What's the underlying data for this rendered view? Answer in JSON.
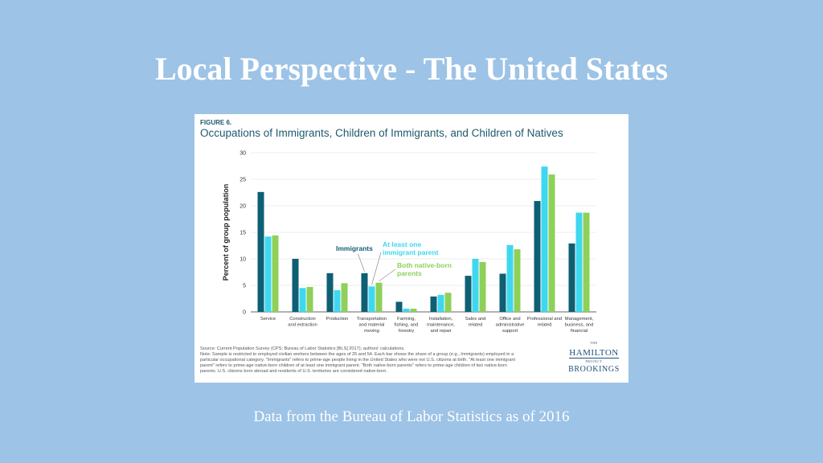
{
  "slide": {
    "title": "Local Perspective - The United States",
    "footer": "Data from the Bureau of Labor Statistics as of 2016"
  },
  "figure": {
    "label": "FIGURE 6.",
    "notes": [
      "Source: Current Population Survey (CPS; Bureau of Labor Statistics [BLS] 2017); authors' calculations.",
      "Note: Sample is restricted to employed civilian workers between the ages of 25 and 54. Each bar shows the share of a group (e.g., Immigrants) employed in a",
      "particular occupational category. \"Immigrants\" refers to prime-age people living in the United States who were not U.S. citizens at birth. \"At least one immigrant",
      "parent\" refers to prime-age native-born children of at least one immigrant parent. \"Both native-born parents\" refers to prime-age children of two native-born",
      "parents. U.S. citizens born abroad and residents of U.S. territories are considered native-born."
    ],
    "logo": {
      "the": "THE",
      "hamilton": "HAMILTON",
      "project": "PROJECT",
      "brookings": "BROOKINGS"
    }
  },
  "chart_data": {
    "type": "bar",
    "title": "Occupations of Immigrants, Children of Immigrants, and Children of Natives",
    "ylabel": "Percent of group population",
    "xlabel": "",
    "ylim": [
      0,
      30
    ],
    "yticks": [
      0,
      5,
      10,
      15,
      20,
      25,
      30
    ],
    "grid": true,
    "categories": [
      [
        "Service"
      ],
      [
        "Construction",
        "and extraction"
      ],
      [
        "Production"
      ],
      [
        "Transportation",
        "and material",
        "moving"
      ],
      [
        "Farming,",
        "fishing, and",
        "forestry"
      ],
      [
        "Installation,",
        "maintenance,",
        "and repair"
      ],
      [
        "Sales and",
        "related"
      ],
      [
        "Office and",
        "administrative",
        "support"
      ],
      [
        "Professional and",
        "related"
      ],
      [
        "Management,",
        "business, and",
        "financial"
      ]
    ],
    "series": [
      {
        "name": "Immigrants",
        "color": "#0e5f73",
        "label_lines": [
          "Immigrants"
        ],
        "values": [
          22.6,
          10.0,
          7.3,
          7.3,
          1.9,
          2.9,
          6.8,
          7.2,
          20.9,
          12.9
        ]
      },
      {
        "name": "At least one immigrant parent",
        "color": "#3fd7f0",
        "label_lines": [
          "At least one",
          "immigrant parent"
        ],
        "values": [
          14.2,
          4.5,
          4.1,
          4.8,
          0.6,
          3.2,
          10.0,
          12.6,
          27.4,
          18.7
        ]
      },
      {
        "name": "Both native-born parents",
        "color": "#8ed05a",
        "label_lines": [
          "Both native-born",
          "parents"
        ],
        "values": [
          14.4,
          4.7,
          5.4,
          5.5,
          0.6,
          3.6,
          9.4,
          11.8,
          25.9,
          18.7
        ]
      }
    ]
  }
}
